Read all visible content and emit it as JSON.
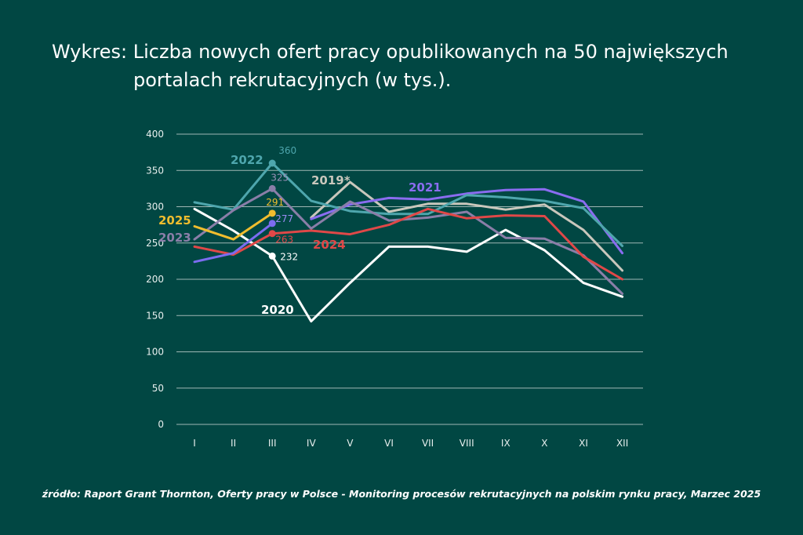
{
  "title_line1": "Wykres: Liczba nowych ofert pracy opublikowanych na 50 największych",
  "title_line2": "portalach rekrutacyjnych (w tys.).",
  "source": "źródło: Raport Grant Thornton, Oferty pracy w Polsce - Monitoring procesów rekrutacyjnych na polskim rynku pracy, Marzec 2025",
  "colors": {
    "background": "#014743",
    "grid": "#9fb7b4",
    "axis_text": "#e8efee"
  },
  "chart_data": {
    "type": "line",
    "categories": [
      "I",
      "II",
      "III",
      "IV",
      "V",
      "VI",
      "VII",
      "VIII",
      "IX",
      "X",
      "XI",
      "XII"
    ],
    "yticks": [
      0,
      50,
      100,
      150,
      200,
      250,
      300,
      350,
      400
    ],
    "ylim": [
      0,
      400
    ],
    "grid": true,
    "series": [
      {
        "name": "2019*",
        "color": "#c9c7bc",
        "values": [
          null,
          null,
          null,
          285,
          334,
          293,
          304,
          304,
          296,
          303,
          268,
          212
        ]
      },
      {
        "name": "2020",
        "color": "#ffffff",
        "values": [
          297,
          267,
          232,
          142,
          195,
          245,
          245,
          238,
          268,
          240,
          195,
          176
        ]
      },
      {
        "name": "2021",
        "color": "#8a6cf0",
        "values": [
          null,
          null,
          null,
          283,
          303,
          312,
          310,
          318,
          323,
          324,
          307,
          236
        ]
      },
      {
        "name": "2022",
        "color": "#4ea6ad",
        "values": [
          306,
          296,
          360,
          308,
          294,
          290,
          290,
          316,
          313,
          308,
          298,
          246
        ]
      },
      {
        "name": "2023",
        "color": "#8a7ea8",
        "values": [
          255,
          295,
          325,
          270,
          307,
          281,
          285,
          293,
          257,
          256,
          233,
          180
        ]
      },
      {
        "name": "2024",
        "color": "#e04848",
        "values": [
          245,
          234,
          263,
          267,
          262,
          275,
          297,
          284,
          288,
          287,
          231,
          200
        ]
      },
      {
        "name": "2025",
        "color": "#f0bd2e",
        "values": [
          273,
          255,
          291,
          null,
          null,
          null,
          null,
          null,
          null,
          null,
          null,
          null
        ]
      },
      {
        "name": "",
        "color": "#7b6cf0",
        "values": [
          224,
          236,
          277,
          null,
          null,
          null,
          null,
          null,
          null,
          null,
          null,
          null
        ]
      }
    ],
    "point_labels": [
      {
        "series": "2022",
        "category": "III",
        "value": "360",
        "color": "#4ea6ad"
      },
      {
        "series": "2023",
        "category": "III",
        "value": "325",
        "color": "#9a90b8"
      },
      {
        "series": "2025",
        "category": "III",
        "value": "291",
        "color": "#f0bd2e"
      },
      {
        "series": "",
        "category": "III",
        "value": "277",
        "color": "#9b8cf5"
      },
      {
        "series": "2024",
        "category": "III",
        "value": "263",
        "color": "#e04848"
      },
      {
        "series": "2020",
        "category": "III",
        "value": "232",
        "color": "#ffffff"
      }
    ],
    "series_labels": [
      {
        "text": "2022",
        "color": "#4ea6ad"
      },
      {
        "text": "2019*",
        "color": "#c9c7bc"
      },
      {
        "text": "2021",
        "color": "#8a6cf0"
      },
      {
        "text": "2025",
        "color": "#f0bd2e"
      },
      {
        "text": "2023",
        "color": "#8a7ea8"
      },
      {
        "text": "2024",
        "color": "#e04848"
      },
      {
        "text": "2020",
        "color": "#ffffff"
      }
    ]
  }
}
